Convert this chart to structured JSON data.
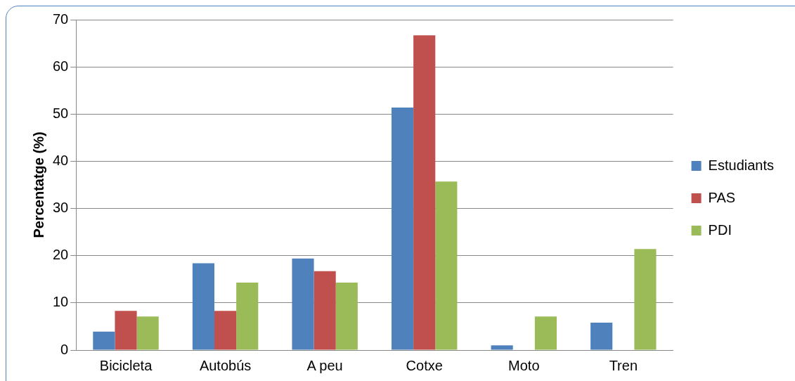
{
  "chart_data": {
    "type": "bar",
    "ylabel": "Percentatge (%)",
    "categories": [
      "Bicicleta",
      "Autobús",
      "A peu",
      "Cotxe",
      "Moto",
      "Tren"
    ],
    "series": [
      {
        "name": "Estudiants",
        "color": "#4f81bd",
        "values": [
          3.9,
          18.4,
          19.4,
          51.4,
          1.0,
          5.8
        ]
      },
      {
        "name": "PAS",
        "color": "#c0504d",
        "values": [
          8.3,
          8.3,
          16.7,
          66.7,
          0,
          0
        ]
      },
      {
        "name": "PDI",
        "color": "#9bbb59",
        "values": [
          7.1,
          14.3,
          14.3,
          35.7,
          7.1,
          21.4
        ]
      }
    ],
    "ylim": [
      0,
      70
    ],
    "yticks": [
      0,
      10,
      20,
      30,
      40,
      50,
      60,
      70
    ],
    "grid": "y",
    "legend": "right"
  }
}
